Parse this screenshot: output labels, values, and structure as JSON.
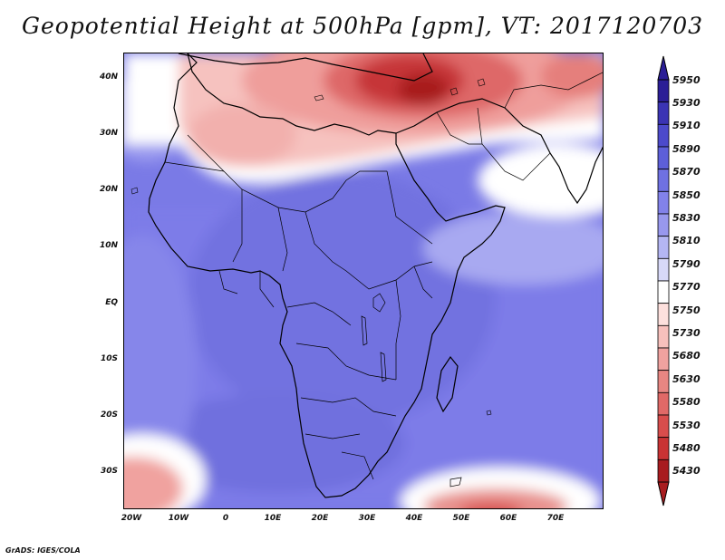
{
  "title": "Geopotential Height at 500hPa [gpm], VT: 2017120703",
  "credit": "GrADS: IGES/COLA",
  "axes": {
    "lat_labels": [
      "40N",
      "30N",
      "20N",
      "10N",
      "EQ",
      "10S",
      "20S",
      "30S"
    ],
    "lon_labels": [
      "20W",
      "10W",
      "0",
      "10E",
      "20E",
      "30E",
      "40E",
      "50E",
      "60E",
      "70E"
    ]
  },
  "colorbar": {
    "levels": [
      "5950",
      "5930",
      "5910",
      "5890",
      "5870",
      "5850",
      "5830",
      "5810",
      "5790",
      "5770",
      "5750",
      "5730",
      "5680",
      "5630",
      "5580",
      "5530",
      "5480",
      "5430"
    ],
    "colors": [
      "#2b1e96",
      "#3b34b4",
      "#4c4acb",
      "#5d5fd9",
      "#6f71e2",
      "#8282ea",
      "#9898ee",
      "#b4b6f3",
      "#d8d9f8",
      "#ffffff",
      "#fde0dd",
      "#f7c0bc",
      "#f0a29f",
      "#e78682",
      "#e06967",
      "#d84d4c",
      "#c93334",
      "#a81c1f"
    ]
  },
  "chart_data": {
    "type": "heatmap",
    "title": "Geopotential Height at 500hPa [gpm], VT: 2017120703",
    "variable": "Geopotential Height at 500hPa",
    "units": "gpm",
    "valid_time": "2017120703",
    "lon_range": [
      -22,
      80
    ],
    "lat_range": [
      -37,
      45
    ],
    "levels": [
      5430,
      5480,
      5530,
      5580,
      5630,
      5680,
      5730,
      5750,
      5770,
      5790,
      5810,
      5830,
      5850,
      5870,
      5890,
      5910,
      5930,
      5950
    ]
  }
}
